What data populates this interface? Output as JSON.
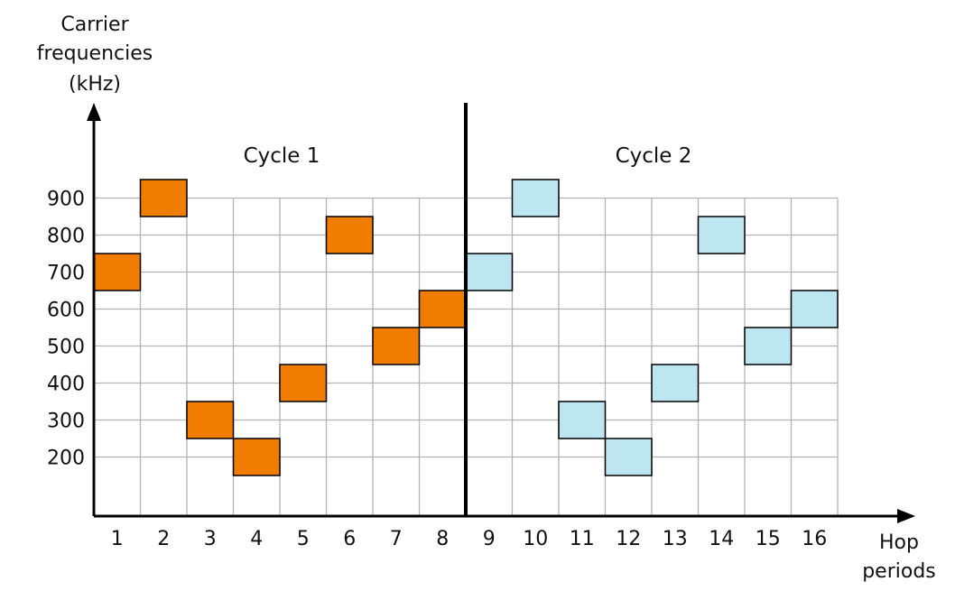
{
  "chart_data": {
    "type": "scatter",
    "ylabel_lines": [
      "Carrier",
      "frequencies",
      "(kHz)"
    ],
    "xlabel_lines": [
      "Hop",
      "periods"
    ],
    "x_ticks": [
      "1",
      "2",
      "3",
      "4",
      "5",
      "6",
      "7",
      "8",
      "9",
      "10",
      "11",
      "12",
      "13",
      "14",
      "15",
      "16"
    ],
    "y_ticks": [
      "200",
      "300",
      "400",
      "500",
      "600",
      "700",
      "800",
      "900"
    ],
    "xlim": [
      0.5,
      16.5
    ],
    "ylim": [
      200,
      900
    ],
    "grid": true,
    "cycle_labels": [
      "Cycle 1",
      "Cycle 2"
    ],
    "series": [
      {
        "color": "#f07c00",
        "points": [
          {
            "x": 1,
            "y": 700
          },
          {
            "x": 2,
            "y": 900
          },
          {
            "x": 3,
            "y": 300
          },
          {
            "x": 4,
            "y": 200
          },
          {
            "x": 5,
            "y": 400
          },
          {
            "x": 6,
            "y": 800
          },
          {
            "x": 7,
            "y": 500
          },
          {
            "x": 8,
            "y": 600
          }
        ]
      },
      {
        "color": "#bde6f1",
        "points": [
          {
            "x": 9,
            "y": 700
          },
          {
            "x": 10,
            "y": 900
          },
          {
            "x": 11,
            "y": 300
          },
          {
            "x": 12,
            "y": 200
          },
          {
            "x": 13,
            "y": 400
          },
          {
            "x": 14,
            "y": 800
          },
          {
            "x": 15,
            "y": 500
          },
          {
            "x": 16,
            "y": 600
          }
        ]
      }
    ]
  }
}
